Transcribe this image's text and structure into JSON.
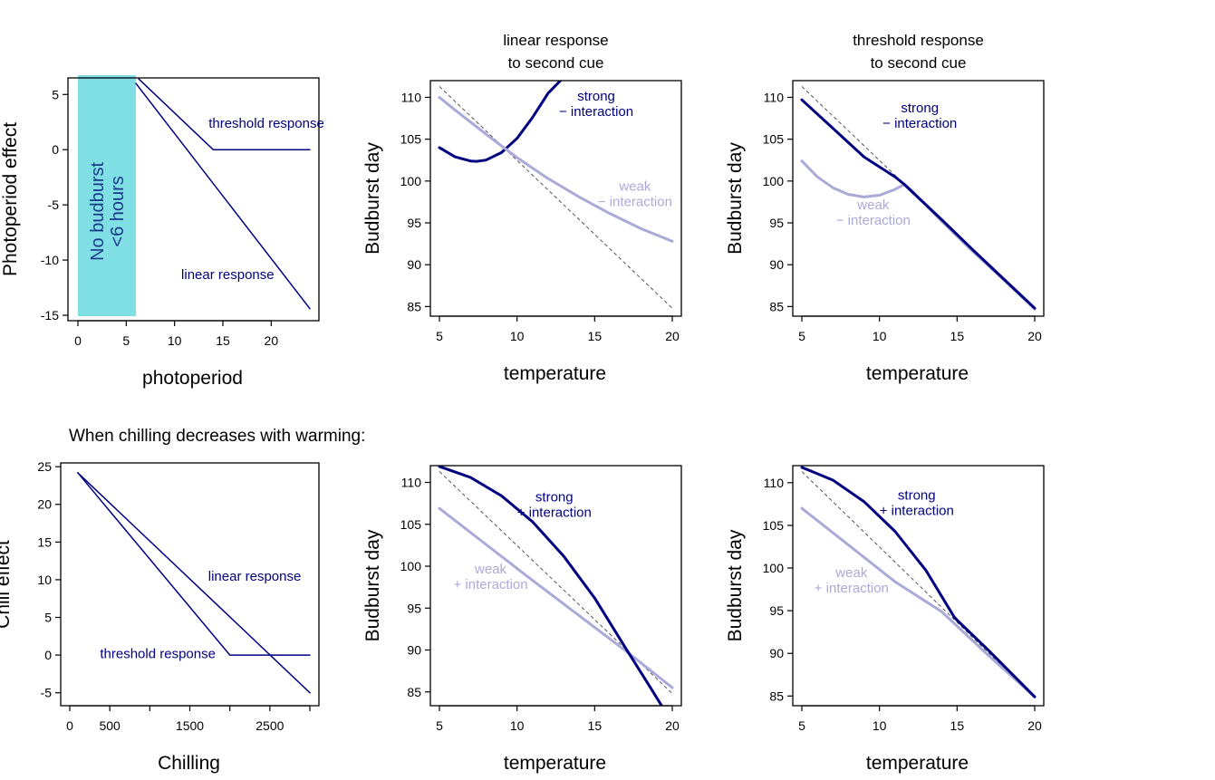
{
  "colors": {
    "strong": "#000080",
    "weak": "#aaaad9",
    "threshold_band": "#7fdfe5",
    "reference": "#555555"
  },
  "section_heading": "When chilling decreases with warming:",
  "chart_data": [
    {
      "id": "photoperiod",
      "type": "line",
      "title": "",
      "xlabel": "photoperiod",
      "ylabel": "Photoperiod effect",
      "xlim": [
        0,
        24
      ],
      "ylim": [
        -15,
        6.5
      ],
      "xticks": [
        0,
        5,
        10,
        15,
        20
      ],
      "yticks": [
        -15,
        -10,
        -5,
        0,
        5
      ],
      "band": {
        "x": [
          0,
          6
        ],
        "label_lines": [
          "No budburst",
          "<6 hours"
        ]
      },
      "series": [
        {
          "name": "threshold response",
          "color": "strong",
          "width": 1.5,
          "x": [
            6.3,
            14,
            24
          ],
          "y": [
            6.4,
            0,
            0
          ]
        },
        {
          "name": "linear response",
          "color": "strong",
          "width": 1.5,
          "x": [
            6,
            24
          ],
          "y": [
            6,
            -14.4
          ]
        }
      ],
      "annotations": [
        {
          "lines": [
            "threshold response"
          ],
          "x": 19.5,
          "y": 2.4,
          "color": "strong"
        },
        {
          "lines": [
            "linear response"
          ],
          "x": 15.5,
          "y": -11.3,
          "color": "strong"
        }
      ]
    },
    {
      "id": "linear-neg",
      "type": "line",
      "title_lines": [
        "linear response",
        "to second cue"
      ],
      "xlabel": "temperature",
      "ylabel": "Budburst day",
      "xlim": [
        5,
        20
      ],
      "ylim": [
        84.5,
        112
      ],
      "xticks": [
        5,
        10,
        15,
        20
      ],
      "yticks": [
        85,
        90,
        95,
        100,
        105,
        110
      ],
      "reference": {
        "x": [
          5,
          20
        ],
        "y": [
          111.3,
          84.8
        ]
      },
      "series": [
        {
          "name": "strong − interaction",
          "color": "strong",
          "width": 3,
          "x": [
            5,
            6,
            7,
            7.4,
            8,
            9,
            10,
            11,
            12,
            12.8
          ],
          "y": [
            104,
            102.9,
            102.4,
            102.35,
            102.5,
            103.4,
            105.1,
            107.6,
            110.5,
            112
          ]
        },
        {
          "name": "weak − interaction",
          "color": "weak",
          "width": 3,
          "x": [
            5,
            6,
            8,
            10,
            12,
            14,
            16,
            18,
            20
          ],
          "y": [
            110,
            108.5,
            105.6,
            102.8,
            100.3,
            98.1,
            96.1,
            94.3,
            92.8
          ]
        }
      ],
      "annotations": [
        {
          "lines": [
            "strong",
            "− interaction"
          ],
          "x": 15.1,
          "y": 109.3,
          "color": "strong"
        },
        {
          "lines": [
            "weak",
            "− interaction"
          ],
          "x": 17.6,
          "y": 98.5,
          "color": "weak"
        }
      ]
    },
    {
      "id": "threshold-neg",
      "type": "line",
      "title_lines": [
        "threshold response",
        "to second cue"
      ],
      "xlabel": "temperature",
      "ylabel": "Budburst day",
      "xlim": [
        5,
        20
      ],
      "ylim": [
        84.5,
        112
      ],
      "xticks": [
        5,
        10,
        15,
        20
      ],
      "yticks": [
        85,
        90,
        95,
        100,
        105,
        110
      ],
      "reference": {
        "x": [
          5,
          20
        ],
        "y": [
          111.3,
          84.8
        ]
      },
      "series": [
        {
          "name": "weak − interaction",
          "color": "weak",
          "width": 3,
          "x": [
            5,
            6,
            7,
            8,
            9,
            10,
            11,
            11.6,
            12,
            14,
            16,
            18,
            20
          ],
          "y": [
            102.4,
            100.5,
            99.2,
            98.4,
            98.1,
            98.3,
            99,
            99.6,
            99,
            95.2,
            91.6,
            88.2,
            84.7
          ]
        },
        {
          "name": "strong − interaction",
          "color": "strong",
          "width": 3,
          "x": [
            5,
            7,
            9,
            11,
            11.6,
            12,
            14,
            16,
            18,
            20
          ],
          "y": [
            109.7,
            106.3,
            102.9,
            100.5,
            99.6,
            98.9,
            95.4,
            91.8,
            88.3,
            84.8
          ]
        }
      ],
      "annotations": [
        {
          "lines": [
            "strong",
            "− interaction"
          ],
          "x": 12.6,
          "y": 107.9,
          "color": "strong"
        },
        {
          "lines": [
            "weak",
            "− interaction"
          ],
          "x": 9.6,
          "y": 96.3,
          "color": "weak"
        }
      ]
    },
    {
      "id": "chilling",
      "type": "line",
      "title": "",
      "xlabel": "Chilling",
      "ylabel": "Chill effect",
      "xlim": [
        0,
        3000
      ],
      "ylim": [
        -6,
        25.5
      ],
      "xticks": [
        0,
        500,
        1000,
        1500,
        2000,
        2500,
        3000
      ],
      "xtick_labels": [
        "0",
        "500",
        "",
        "1500",
        "",
        "2500",
        ""
      ],
      "yticks": [
        -5,
        0,
        5,
        10,
        15,
        20,
        25
      ],
      "series": [
        {
          "name": "linear response",
          "color": "strong",
          "width": 1.5,
          "x": [
            100,
            3000
          ],
          "y": [
            24.2,
            -5
          ]
        },
        {
          "name": "threshold response",
          "color": "strong",
          "width": 1.5,
          "x": [
            100,
            2000,
            3000
          ],
          "y": [
            24.2,
            0,
            0
          ]
        }
      ],
      "annotations": [
        {
          "lines": [
            "linear response"
          ],
          "x": 2310,
          "y": 10.5,
          "color": "strong"
        },
        {
          "lines": [
            "threshold response"
          ],
          "x": 1100,
          "y": 0.2,
          "color": "strong"
        }
      ]
    },
    {
      "id": "linear-pos",
      "type": "line",
      "title": "",
      "xlabel": "temperature",
      "ylabel": "Budburst day",
      "xlim": [
        5,
        20
      ],
      "ylim": [
        84,
        112
      ],
      "xticks": [
        5,
        10,
        15,
        20
      ],
      "yticks": [
        85,
        90,
        95,
        100,
        105,
        110
      ],
      "reference": {
        "x": [
          5,
          20
        ],
        "y": [
          111.3,
          84.8
        ]
      },
      "series": [
        {
          "name": "weak + interaction",
          "color": "weak",
          "width": 3,
          "x": [
            5,
            8,
            11,
            14,
            17,
            20
          ],
          "y": [
            106.9,
            102.6,
            98.3,
            94.1,
            89.9,
            85.5
          ]
        },
        {
          "name": "strong + interaction",
          "color": "strong",
          "width": 3,
          "x": [
            5,
            7,
            9,
            11,
            13,
            15,
            17,
            18.5,
            19.5
          ],
          "y": [
            111.9,
            110.6,
            108.4,
            105.3,
            101.2,
            96.2,
            90.2,
            85.8,
            82.8
          ]
        }
      ],
      "annotations": [
        {
          "lines": [
            "strong",
            "+ interaction"
          ],
          "x": 12.4,
          "y": 107.4,
          "color": "strong"
        },
        {
          "lines": [
            "weak",
            "+ interaction"
          ],
          "x": 8.3,
          "y": 98.8,
          "color": "weak"
        }
      ]
    },
    {
      "id": "threshold-pos",
      "type": "line",
      "title": "",
      "xlabel": "temperature",
      "ylabel": "Budburst day",
      "xlim": [
        5,
        20
      ],
      "ylim": [
        84.5,
        112
      ],
      "xticks": [
        5,
        10,
        15,
        20
      ],
      "yticks": [
        85,
        90,
        95,
        100,
        105,
        110
      ],
      "reference": {
        "x": [
          5,
          20
        ],
        "y": [
          111.3,
          84.8
        ]
      },
      "series": [
        {
          "name": "weak + interaction",
          "color": "weak",
          "width": 3,
          "x": [
            5,
            8,
            11,
            14,
            17,
            20
          ],
          "y": [
            107,
            102.7,
            98.4,
            94.9,
            89.8,
            84.9
          ]
        },
        {
          "name": "strong + interaction",
          "color": "strong",
          "width": 3,
          "x": [
            5,
            7,
            9,
            11,
            13,
            14.8,
            15,
            17,
            20
          ],
          "y": [
            111.8,
            110.3,
            107.8,
            104.3,
            99.7,
            94.3,
            93.9,
            90.4,
            84.9
          ]
        }
      ],
      "annotations": [
        {
          "lines": [
            "strong",
            "+ interaction"
          ],
          "x": 12.4,
          "y": 107.7,
          "color": "strong"
        },
        {
          "lines": [
            "weak",
            "+ interaction"
          ],
          "x": 8.2,
          "y": 98.6,
          "color": "weak"
        }
      ]
    }
  ]
}
